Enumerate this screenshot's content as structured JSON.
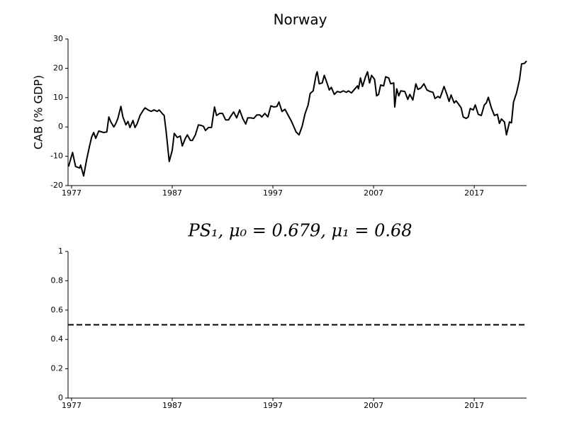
{
  "chart_data": [
    {
      "type": "line",
      "title": "Norway",
      "ylabel": "CAB (% GDP)",
      "color": "#000000",
      "x": [
        1976.7,
        1977.1,
        1977.4,
        1977.8,
        1977.9,
        1978.2,
        1978.5,
        1978.8,
        1979.0,
        1979.2,
        1979.4,
        1979.7,
        1980.0,
        1980.2,
        1980.5,
        1980.7,
        1980.9,
        1981.2,
        1981.4,
        1981.6,
        1981.9,
        1982.1,
        1982.4,
        1982.6,
        1982.8,
        1983.1,
        1983.3,
        1983.5,
        1983.8,
        1984.1,
        1984.3,
        1984.6,
        1984.9,
        1985.2,
        1985.5,
        1985.7,
        1986.0,
        1986.2,
        1986.4,
        1986.7,
        1987.0,
        1987.2,
        1987.5,
        1987.8,
        1988.0,
        1988.3,
        1988.5,
        1988.8,
        1989.0,
        1989.3,
        1989.6,
        1989.9,
        1990.1,
        1990.3,
        1990.6,
        1990.9,
        1991.2,
        1991.4,
        1991.7,
        1992.0,
        1992.3,
        1992.6,
        1992.8,
        1993.1,
        1993.4,
        1993.7,
        1994.0,
        1994.3,
        1994.5,
        1994.8,
        1995.1,
        1995.4,
        1995.7,
        1995.9,
        1996.2,
        1996.5,
        1996.8,
        1997.1,
        1997.4,
        1997.6,
        1997.9,
        1998.2,
        1998.5,
        1998.8,
        1999.0,
        1999.3,
        1999.6,
        1999.9,
        2000.2,
        2000.5,
        2000.7,
        2001.0,
        2001.3,
        2001.4,
        2001.6,
        2001.9,
        2002.1,
        2002.4,
        2002.6,
        2002.8,
        2003.1,
        2003.4,
        2003.7,
        2004.0,
        2004.3,
        2004.5,
        2004.8,
        2005.1,
        2005.4,
        2005.5,
        2005.7,
        2005.9,
        2006.2,
        2006.4,
        2006.6,
        2006.8,
        2007.1,
        2007.3,
        2007.5,
        2007.7,
        2008.0,
        2008.2,
        2008.5,
        2008.7,
        2009.0,
        2009.1,
        2009.3,
        2009.5,
        2009.7,
        2010.1,
        2010.4,
        2010.6,
        2010.9,
        2011.2,
        2011.4,
        2011.7,
        2012.0,
        2012.3,
        2012.6,
        2012.9,
        2013.1,
        2013.4,
        2013.6,
        2013.8,
        2014.0,
        2014.3,
        2014.5,
        2014.7,
        2015.0,
        2015.2,
        2015.5,
        2015.7,
        2015.9,
        2016.2,
        2016.4,
        2016.6,
        2016.9,
        2017.1,
        2017.4,
        2017.7,
        2018.0,
        2018.2,
        2018.4,
        2018.7,
        2019.0,
        2019.3,
        2019.5,
        2019.7,
        2020.0,
        2020.2,
        2020.5,
        2020.7,
        2020.9,
        2021.2,
        2021.5,
        2021.7,
        2022.0,
        2022.2
      ],
      "values": [
        -13.5,
        -8.7,
        -13.5,
        -14.0,
        -13.0,
        -16.7,
        -11.1,
        -6.3,
        -3.4,
        -1.9,
        -3.9,
        -1.4,
        -1.7,
        -1.9,
        -1.7,
        3.4,
        1.7,
        0,
        1.2,
        2.9,
        7.0,
        3.4,
        0.7,
        1.9,
        -0.2,
        2.2,
        -0.2,
        1.0,
        3.9,
        5.6,
        6.5,
        5.8,
        5.3,
        5.8,
        5.3,
        5.8,
        4.6,
        3.9,
        -1.7,
        -11.8,
        -8.0,
        -2.2,
        -3.6,
        -3.1,
        -6.5,
        -3.9,
        -2.7,
        -4.6,
        -4.6,
        -2.7,
        0.7,
        0.5,
        0.2,
        -1.2,
        -0.2,
        -0.2,
        6.8,
        3.9,
        4.6,
        4.6,
        2.4,
        2.4,
        3.6,
        5.1,
        3.1,
        5.8,
        2.9,
        1.0,
        3.1,
        3.1,
        2.9,
        4.1,
        4.1,
        3.4,
        4.6,
        3.4,
        7.2,
        6.8,
        7.0,
        8.5,
        5.3,
        6.0,
        4.1,
        2.2,
        0.7,
        -1.7,
        -2.7,
        0.2,
        4.6,
        7.5,
        11.4,
        12.3,
        17.9,
        18.8,
        14.7,
        15.0,
        17.6,
        14.7,
        12.6,
        13.5,
        11.1,
        12.1,
        11.8,
        12.3,
        11.8,
        12.3,
        11.6,
        12.8,
        14.0,
        13.0,
        16.7,
        13.8,
        17.1,
        18.8,
        15.0,
        17.6,
        16.2,
        10.6,
        11.1,
        14.3,
        14.0,
        17.1,
        16.7,
        14.7,
        15.0,
        6.8,
        13.0,
        10.6,
        12.3,
        12.1,
        9.4,
        11.1,
        9.2,
        14.7,
        12.8,
        13.3,
        14.7,
        12.6,
        12.1,
        11.8,
        9.7,
        10.4,
        9.9,
        11.8,
        13.8,
        10.9,
        8.7,
        10.9,
        8.2,
        8.9,
        7.5,
        6.5,
        3.4,
        2.9,
        3.4,
        6.3,
        5.8,
        7.5,
        4.3,
        3.9,
        7.5,
        8.2,
        10.1,
        6.5,
        3.9,
        4.3,
        1.2,
        2.7,
        1.7,
        -2.7,
        1.7,
        1.4,
        8.5,
        11.6,
        16.2,
        21.5,
        21.7,
        22.5
      ],
      "xlim": [
        1976.65,
        2022.2
      ],
      "xticks": [
        1977,
        1987,
        1997,
        2007,
        2017
      ],
      "ylim": [
        -20,
        30
      ],
      "yticks": [
        -20,
        -10,
        0,
        10,
        20,
        30
      ]
    },
    {
      "type": "line",
      "title": "PS₁, μ₀ = 0.679, μ₁ = 0.68",
      "color": "#000000",
      "hline": 0.5,
      "hline_style": "dashed",
      "xlim": [
        1976.65,
        2022.2
      ],
      "xticks": [
        1977,
        1987,
        1997,
        2007,
        2017
      ],
      "ylim": [
        0,
        1
      ],
      "yticks": [
        0,
        0.2,
        0.4,
        0.6,
        0.8,
        1
      ]
    }
  ]
}
